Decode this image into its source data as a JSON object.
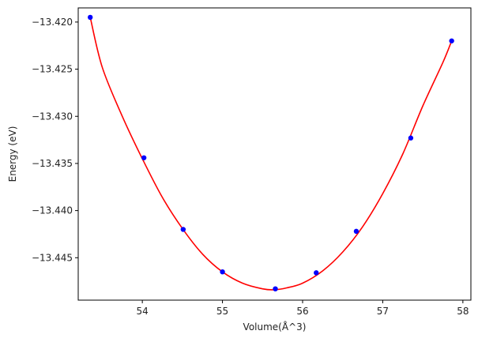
{
  "chart_data": {
    "type": "scatter",
    "title": "",
    "xlabel": "Volume(Å^3)",
    "ylabel": "Energy (eV)",
    "xlim": [
      53.2,
      58.1
    ],
    "ylim": [
      -13.4495,
      -13.4185
    ],
    "xticks": [
      54,
      55,
      56,
      57,
      58
    ],
    "xtick_labels": [
      "54",
      "55",
      "56",
      "57",
      "58"
    ],
    "yticks": [
      -13.42,
      -13.425,
      -13.43,
      -13.435,
      -13.44,
      -13.445
    ],
    "ytick_labels": [
      "−13.420",
      "−13.425",
      "−13.430",
      "−13.435",
      "−13.440",
      "−13.445"
    ],
    "grid": false,
    "series": [
      {
        "kind": "points",
        "color": "#0000ff",
        "x": [
          53.35,
          54.02,
          54.51,
          55.0,
          55.66,
          56.17,
          56.67,
          57.35,
          57.86
        ],
        "y": [
          -13.4195,
          -13.4344,
          -13.442,
          -13.4465,
          -13.4483,
          -13.4466,
          -13.4422,
          -13.4323,
          -13.422
        ]
      },
      {
        "kind": "fit-curve",
        "color": "#ff0000",
        "x": [
          53.35,
          53.5,
          53.75,
          54.0,
          54.25,
          54.5,
          54.75,
          55.0,
          55.25,
          55.5,
          55.65,
          55.8,
          56.0,
          56.25,
          56.5,
          56.75,
          57.0,
          57.25,
          57.5,
          57.75,
          57.86
        ],
        "y": [
          -13.4195,
          -13.4248,
          -13.43,
          -13.4345,
          -13.4386,
          -13.4419,
          -13.4446,
          -13.4465,
          -13.4477,
          -13.4483,
          -13.4484,
          -13.4482,
          -13.4477,
          -13.4464,
          -13.4444,
          -13.4417,
          -13.4382,
          -13.434,
          -13.4289,
          -13.4243,
          -13.422
        ]
      }
    ]
  }
}
